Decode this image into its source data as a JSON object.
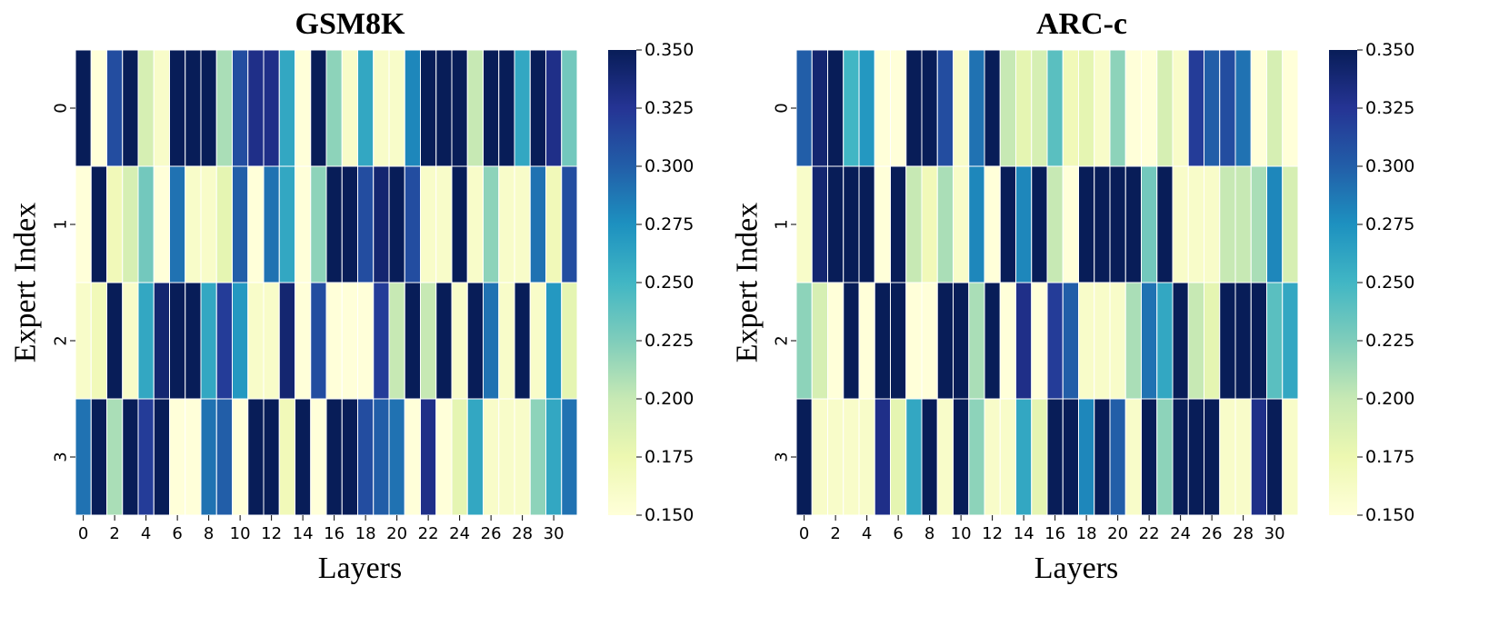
{
  "chart_data": [
    {
      "type": "heatmap",
      "title": "GSM8K",
      "xlabel": "Layers",
      "ylabel": "Expert Index",
      "x": [
        0,
        1,
        2,
        3,
        4,
        5,
        6,
        7,
        8,
        9,
        10,
        11,
        12,
        13,
        14,
        15,
        16,
        17,
        18,
        19,
        20,
        21,
        22,
        23,
        24,
        25,
        26,
        27,
        28,
        29,
        30,
        31
      ],
      "y": [
        0,
        1,
        2,
        3
      ],
      "x_tick_labels": [
        "0",
        "2",
        "4",
        "6",
        "8",
        "10",
        "12",
        "14",
        "16",
        "18",
        "20",
        "22",
        "24",
        "26",
        "28",
        "30"
      ],
      "y_tick_labels": [
        "0",
        "1",
        "2",
        "3"
      ],
      "colorbar": {
        "min": 0.15,
        "max": 0.35,
        "ticks": [
          "0.150",
          "0.175",
          "0.200",
          "0.225",
          "0.250",
          "0.275",
          "0.300",
          "0.325",
          "0.350"
        ],
        "colormap": "YlGnBu"
      },
      "values": [
        [
          0.35,
          0.15,
          0.31,
          0.35,
          0.19,
          0.16,
          0.35,
          0.35,
          0.35,
          0.21,
          0.31,
          0.33,
          0.33,
          0.26,
          0.15,
          0.35,
          0.22,
          0.16,
          0.26,
          0.16,
          0.16,
          0.28,
          0.35,
          0.35,
          0.35,
          0.2,
          0.35,
          0.35,
          0.26,
          0.35,
          0.33,
          0.23
        ],
        [
          0.15,
          0.35,
          0.17,
          0.19,
          0.23,
          0.15,
          0.29,
          0.16,
          0.16,
          0.18,
          0.3,
          0.15,
          0.29,
          0.26,
          0.15,
          0.22,
          0.35,
          0.35,
          0.31,
          0.34,
          0.35,
          0.31,
          0.16,
          0.16,
          0.35,
          0.16,
          0.22,
          0.16,
          0.16,
          0.29,
          0.17,
          0.31
        ],
        [
          0.16,
          0.17,
          0.35,
          0.16,
          0.26,
          0.34,
          0.35,
          0.35,
          0.26,
          0.32,
          0.27,
          0.16,
          0.16,
          0.34,
          0.15,
          0.31,
          0.15,
          0.15,
          0.15,
          0.32,
          0.2,
          0.35,
          0.2,
          0.35,
          0.16,
          0.35,
          0.29,
          0.16,
          0.35,
          0.16,
          0.27,
          0.18
        ],
        [
          0.29,
          0.35,
          0.21,
          0.35,
          0.32,
          0.35,
          0.15,
          0.15,
          0.29,
          0.3,
          0.15,
          0.35,
          0.35,
          0.17,
          0.35,
          0.15,
          0.35,
          0.35,
          0.31,
          0.3,
          0.29,
          0.15,
          0.33,
          0.15,
          0.18,
          0.26,
          0.16,
          0.16,
          0.16,
          0.22,
          0.26,
          0.29
        ]
      ]
    },
    {
      "type": "heatmap",
      "title": "ARC-c",
      "xlabel": "Layers",
      "ylabel": "Expert Index",
      "x": [
        0,
        1,
        2,
        3,
        4,
        5,
        6,
        7,
        8,
        9,
        10,
        11,
        12,
        13,
        14,
        15,
        16,
        17,
        18,
        19,
        20,
        21,
        22,
        23,
        24,
        25,
        26,
        27,
        28,
        29,
        30,
        31
      ],
      "y": [
        0,
        1,
        2,
        3
      ],
      "x_tick_labels": [
        "0",
        "2",
        "4",
        "6",
        "8",
        "10",
        "12",
        "14",
        "16",
        "18",
        "20",
        "22",
        "24",
        "26",
        "28",
        "30"
      ],
      "y_tick_labels": [
        "0",
        "1",
        "2",
        "3"
      ],
      "colorbar": {
        "min": 0.15,
        "max": 0.35,
        "ticks": [
          "0.150",
          "0.175",
          "0.200",
          "0.225",
          "0.250",
          "0.275",
          "0.300",
          "0.325",
          "0.350"
        ],
        "colormap": "YlGnBu"
      },
      "values": [
        [
          0.3,
          0.34,
          0.35,
          0.25,
          0.27,
          0.15,
          0.15,
          0.35,
          0.35,
          0.31,
          0.16,
          0.29,
          0.35,
          0.2,
          0.18,
          0.19,
          0.24,
          0.17,
          0.18,
          0.16,
          0.22,
          0.15,
          0.15,
          0.19,
          0.16,
          0.32,
          0.3,
          0.31,
          0.29,
          0.15,
          0.19,
          0.15
        ],
        [
          0.16,
          0.34,
          0.35,
          0.35,
          0.35,
          0.15,
          0.35,
          0.2,
          0.17,
          0.21,
          0.16,
          0.28,
          0.15,
          0.35,
          0.28,
          0.35,
          0.2,
          0.15,
          0.35,
          0.35,
          0.35,
          0.35,
          0.23,
          0.35,
          0.16,
          0.16,
          0.16,
          0.2,
          0.2,
          0.21,
          0.28,
          0.19
        ],
        [
          0.22,
          0.19,
          0.15,
          0.35,
          0.15,
          0.35,
          0.35,
          0.15,
          0.15,
          0.35,
          0.35,
          0.21,
          0.35,
          0.15,
          0.33,
          0.15,
          0.32,
          0.3,
          0.16,
          0.16,
          0.16,
          0.21,
          0.29,
          0.26,
          0.35,
          0.2,
          0.18,
          0.35,
          0.35,
          0.35,
          0.24,
          0.26
        ],
        [
          0.35,
          0.16,
          0.16,
          0.16,
          0.16,
          0.33,
          0.18,
          0.26,
          0.35,
          0.16,
          0.35,
          0.22,
          0.16,
          0.16,
          0.26,
          0.18,
          0.35,
          0.35,
          0.28,
          0.35,
          0.3,
          0.16,
          0.35,
          0.22,
          0.35,
          0.35,
          0.35,
          0.16,
          0.16,
          0.33,
          0.35,
          0.16
        ]
      ]
    }
  ]
}
